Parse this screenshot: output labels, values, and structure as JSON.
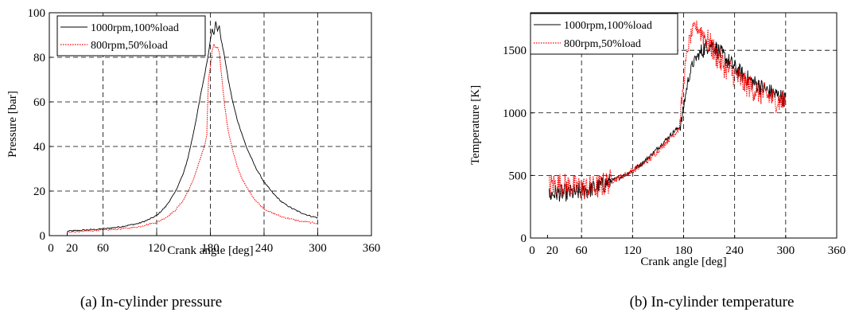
{
  "chart_data": [
    {
      "type": "line",
      "caption": "(a) In-cylinder pressure",
      "xlabel": "Crank angle [deg]",
      "ylabel": "Pressure [bar]",
      "xlim": [
        0,
        360
      ],
      "ylim": [
        0,
        100
      ],
      "xticks": [
        0,
        20,
        60,
        120,
        180,
        240,
        300,
        360
      ],
      "yticks": [
        0,
        20,
        40,
        60,
        80,
        100
      ],
      "grid": "dashed",
      "legend_position": "top-left",
      "series": [
        {
          "name": "1000rpm,100%load",
          "color": "#000000",
          "style": "solid",
          "x": [
            20,
            40,
            60,
            80,
            100,
            110,
            120,
            130,
            140,
            150,
            155,
            160,
            165,
            170,
            174,
            178,
            180,
            182,
            184,
            186,
            188,
            190,
            192,
            194,
            196,
            198,
            200,
            205,
            210,
            215,
            220,
            230,
            240,
            250,
            260,
            270,
            280,
            290,
            300
          ],
          "y": [
            2,
            2.5,
            3,
            4,
            5.5,
            7,
            9,
            13,
            19,
            28,
            35,
            44,
            54,
            65,
            73,
            82,
            88,
            93,
            90,
            96,
            92,
            94,
            88,
            84,
            80,
            75,
            70,
            60,
            52,
            46,
            40,
            31,
            24,
            19,
            15,
            12.5,
            10.5,
            9,
            8
          ]
        },
        {
          "name": "800rpm,50%load",
          "color": "#ff0000",
          "style": "dotted",
          "x": [
            20,
            40,
            60,
            80,
            100,
            110,
            120,
            130,
            140,
            150,
            160,
            165,
            170,
            174,
            176,
            177,
            178,
            180,
            182,
            184,
            186,
            188,
            190,
            192,
            194,
            196,
            200,
            205,
            210,
            215,
            220,
            230,
            240,
            250,
            260,
            270,
            280,
            290,
            300
          ],
          "y": [
            1.5,
            2,
            2.5,
            3,
            4,
            5,
            6,
            8,
            11,
            16,
            24,
            30,
            36,
            41,
            45,
            60,
            70,
            76,
            83,
            86,
            84,
            85,
            82,
            74,
            66,
            58,
            47,
            38,
            31,
            26,
            22,
            16,
            12,
            10,
            8.5,
            7.5,
            6.5,
            6,
            5.5
          ]
        }
      ]
    },
    {
      "type": "line",
      "caption": "(b) In-cylinder temperature",
      "xlabel": "Crank angle [deg]",
      "ylabel": "Temperature [K]",
      "xlim": [
        0,
        360
      ],
      "ylim": [
        0,
        1800
      ],
      "xticks": [
        0,
        20,
        60,
        120,
        180,
        240,
        300,
        360
      ],
      "yticks": [
        0,
        500,
        1000,
        1500
      ],
      "grid": "dashed",
      "legend_position": "top-left",
      "series": [
        {
          "name": "1000rpm,100%load",
          "color": "#000000",
          "style": "solid",
          "noise": 70,
          "x": [
            22,
            30,
            40,
            50,
            60,
            70,
            80,
            90,
            100,
            110,
            120,
            130,
            140,
            150,
            160,
            170,
            176,
            178,
            180,
            185,
            190,
            195,
            200,
            205,
            210,
            215,
            220,
            230,
            240,
            250,
            260,
            270,
            280,
            290,
            300
          ],
          "y": [
            340,
            360,
            360,
            360,
            370,
            390,
            410,
            440,
            470,
            500,
            540,
            590,
            650,
            720,
            790,
            860,
            890,
            950,
            1050,
            1250,
            1380,
            1440,
            1480,
            1520,
            1550,
            1540,
            1500,
            1430,
            1360,
            1300,
            1250,
            1210,
            1170,
            1140,
            1110
          ]
        },
        {
          "name": "800rpm,50%load",
          "color": "#ff0000",
          "style": "dotted",
          "noise": 100,
          "x": [
            22,
            30,
            40,
            50,
            60,
            70,
            80,
            90,
            100,
            110,
            120,
            130,
            140,
            150,
            160,
            170,
            175,
            177,
            178,
            180,
            183,
            186,
            190,
            194,
            198,
            202,
            206,
            210,
            215,
            220,
            230,
            240,
            250,
            260,
            270,
            280,
            290,
            300
          ],
          "y": [
            420,
            430,
            420,
            410,
            400,
            400,
            410,
            440,
            470,
            500,
            540,
            580,
            630,
            700,
            770,
            840,
            880,
            1050,
            1100,
            1250,
            1420,
            1560,
            1640,
            1690,
            1670,
            1640,
            1600,
            1560,
            1500,
            1440,
            1360,
            1300,
            1240,
            1200,
            1160,
            1130,
            1100,
            1080
          ]
        }
      ]
    }
  ]
}
